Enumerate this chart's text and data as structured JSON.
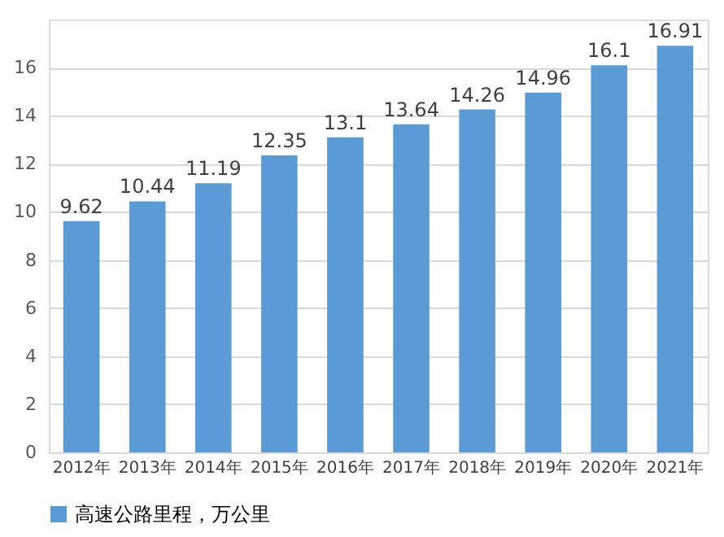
{
  "chart_data": {
    "type": "bar",
    "categories": [
      "2012年",
      "2013年",
      "2014年",
      "2015年",
      "2016年",
      "2017年",
      "2018年",
      "2019年",
      "2020年",
      "2021年"
    ],
    "series": [
      {
        "name": "高速公路里程，万公里",
        "color": "#5b9bd5",
        "values": [
          9.62,
          10.44,
          11.19,
          12.35,
          13.1,
          13.64,
          14.26,
          14.96,
          16.1,
          16.91
        ]
      }
    ],
    "ylim": [
      0,
      18
    ],
    "yticks": [
      0,
      2,
      4,
      6,
      8,
      10,
      12,
      14,
      16
    ],
    "grid": "y",
    "legend": "bottom",
    "data_labels": true
  }
}
